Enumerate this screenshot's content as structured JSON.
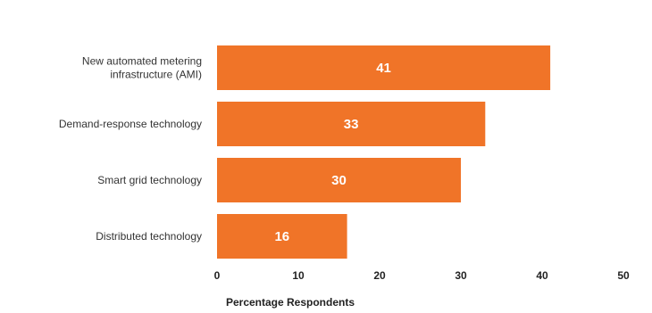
{
  "chart_data": {
    "type": "bar",
    "orientation": "horizontal",
    "categories": [
      [
        "New automated metering",
        "infrastructure (AMI)"
      ],
      [
        "Demand-response technology"
      ],
      [
        "Smart grid technology"
      ],
      [
        "Distributed technology"
      ]
    ],
    "values": [
      41,
      33,
      30,
      16
    ],
    "data_labels": [
      "41",
      "33",
      "30",
      "16"
    ],
    "xlabel": "Percentage Respondents",
    "xlim": [
      0,
      50
    ],
    "x_ticks": [
      "0",
      "10",
      "20",
      "30",
      "40",
      "50"
    ],
    "grid": false,
    "bar_color": "#f07428"
  }
}
